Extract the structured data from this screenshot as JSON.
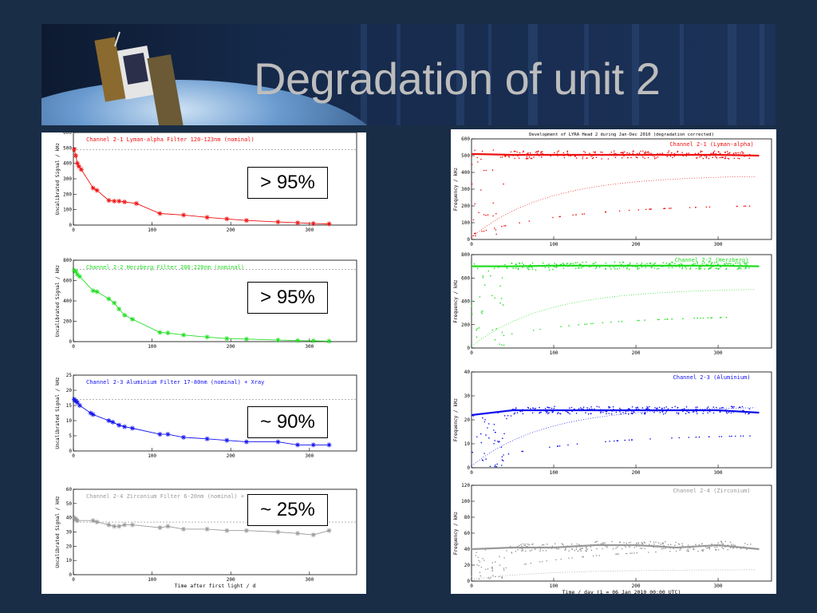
{
  "slide": {
    "title": "Degradation of unit 2",
    "background": "#1a2d47"
  },
  "annotations": [
    "> 95%",
    "> 95%",
    "~ 90%",
    "~ 25%"
  ],
  "colors": {
    "red": "#ee1111",
    "green": "#22dd22",
    "blue": "#1111ee",
    "grey": "#999999"
  },
  "chart_data": [
    {
      "panel": "left",
      "type": "scatter",
      "color": "#ee1111",
      "legend": "Channel 2-1       Lyman-alpha Filter      120-123nm (nominal)",
      "ylabel": "Uncalibrated Signal / kHz",
      "xlabel": "",
      "xlim": [
        0,
        360
      ],
      "ylim": [
        0,
        600
      ],
      "xticks": [
        "0",
        "100",
        "200",
        "300"
      ],
      "yticks": [
        "0",
        "100",
        "200",
        "300",
        "400",
        "500",
        "600"
      ],
      "reference": 490,
      "x": [
        1,
        3,
        5,
        7,
        10,
        25,
        30,
        45,
        52,
        58,
        65,
        80,
        110,
        140,
        170,
        195,
        220,
        260,
        285,
        305,
        325
      ],
      "y": [
        490,
        450,
        400,
        380,
        360,
        240,
        225,
        160,
        155,
        155,
        150,
        140,
        75,
        65,
        50,
        40,
        30,
        20,
        15,
        10,
        8
      ]
    },
    {
      "panel": "left",
      "type": "scatter",
      "color": "#22dd22",
      "legend": "Channel 2-2       Herzberg Filter         200-220nm (nominal)",
      "ylabel": "Uncalibrated Signal / kHz",
      "xlabel": "",
      "xlim": [
        0,
        360
      ],
      "ylim": [
        0,
        800
      ],
      "xticks": [
        "0",
        "100",
        "200",
        "300"
      ],
      "yticks": [
        "0",
        "200",
        "400",
        "600",
        "800"
      ],
      "reference": 710,
      "x": [
        1,
        3,
        5,
        8,
        25,
        30,
        45,
        52,
        58,
        65,
        75,
        110,
        120,
        140,
        170,
        195,
        220,
        260,
        285,
        305,
        325
      ],
      "y": [
        700,
        690,
        660,
        640,
        500,
        490,
        420,
        380,
        320,
        260,
        220,
        90,
        85,
        65,
        45,
        30,
        25,
        15,
        10,
        8,
        5
      ]
    },
    {
      "panel": "left",
      "type": "scatter",
      "color": "#1111ee",
      "legend": "Channel 2-3       Aluminium Filter        17-80nm (nominal) + Xray",
      "ylabel": "Uncalibrated Signal / kHz",
      "xlabel": "",
      "xlim": [
        0,
        360
      ],
      "ylim": [
        0,
        25
      ],
      "xticks": [
        "0",
        "100",
        "200",
        "300"
      ],
      "yticks": [
        "0",
        "5",
        "10",
        "15",
        "20",
        "25"
      ],
      "reference": 17,
      "x": [
        1,
        3,
        5,
        8,
        22,
        25,
        45,
        50,
        58,
        65,
        75,
        110,
        120,
        140,
        170,
        195,
        220,
        260,
        285,
        305,
        325
      ],
      "y": [
        17,
        16.5,
        16,
        15,
        12.5,
        12,
        10,
        9.5,
        8.5,
        8,
        7.5,
        5.5,
        5.5,
        4.5,
        4,
        3.5,
        3,
        3,
        2,
        2,
        2
      ]
    },
    {
      "panel": "left",
      "type": "scatter",
      "color": "#999999",
      "legend": "Channel 2-4       Zirconium Filter        6-20nm (nominal) + Xray",
      "ylabel": "Uncalibrated Signal / kHz",
      "xlabel": "Time after first light / d",
      "xlim": [
        0,
        360
      ],
      "ylim": [
        0,
        60
      ],
      "xticks": [
        "0",
        "100",
        "200",
        "300"
      ],
      "yticks": [
        "0",
        "10",
        "20",
        "30",
        "40",
        "50",
        "60"
      ],
      "reference": 37,
      "x": [
        1,
        3,
        5,
        25,
        30,
        45,
        52,
        58,
        65,
        75,
        110,
        120,
        140,
        170,
        195,
        220,
        260,
        285,
        305,
        325
      ],
      "y": [
        40,
        39,
        38,
        38,
        37,
        35,
        34,
        34,
        35,
        35,
        33,
        34,
        32,
        32,
        31,
        31,
        30,
        29,
        28,
        31
      ]
    },
    {
      "panel": "right",
      "type": "scatter",
      "color": "#ee1111",
      "title": "Development of LYRA Head 2 during Jan-Dec 2010 (degradation corrected)",
      "legend": "Channel 2-1 (Lyman-alpha)",
      "ylabel": "Frequency / kHz",
      "xlabel": "",
      "xlim": [
        0,
        365
      ],
      "ylim": [
        0,
        600
      ],
      "xticks": [
        "0",
        "100",
        "200",
        "300"
      ],
      "yticks": [
        "0",
        "100",
        "200",
        "300",
        "400",
        "500",
        "600"
      ],
      "trend_x": [
        0,
        50,
        100,
        150,
        200,
        250,
        300,
        350
      ],
      "trend_y": [
        510,
        505,
        505,
        505,
        505,
        505,
        505,
        500
      ]
    },
    {
      "panel": "right",
      "type": "scatter",
      "color": "#22dd22",
      "legend": "Channel 2-2 (Herzberg)",
      "ylabel": "Frequency / kHz",
      "xlabel": "",
      "xlim": [
        0,
        365
      ],
      "ylim": [
        0,
        800
      ],
      "xticks": [
        "0",
        "100",
        "200",
        "300"
      ],
      "yticks": [
        "0",
        "200",
        "400",
        "600",
        "800"
      ],
      "trend_x": [
        0,
        50,
        100,
        150,
        200,
        250,
        300,
        350
      ],
      "trend_y": [
        700,
        700,
        705,
        705,
        705,
        705,
        705,
        700
      ]
    },
    {
      "panel": "right",
      "type": "scatter",
      "color": "#1111ee",
      "legend": "Channel 2-3 (Aluminium)",
      "ylabel": "Frequency / kHz",
      "xlabel": "",
      "xlim": [
        0,
        365
      ],
      "ylim": [
        0,
        40
      ],
      "xticks": [
        "0",
        "100",
        "200",
        "300"
      ],
      "yticks": [
        "0",
        "10",
        "20",
        "30",
        "40"
      ],
      "trend_x": [
        0,
        50,
        100,
        150,
        200,
        250,
        300,
        350
      ],
      "trend_y": [
        22,
        24,
        24,
        24,
        24,
        24,
        24,
        23
      ]
    },
    {
      "panel": "right",
      "type": "scatter",
      "color": "#999999",
      "legend": "Channel 2-4 (Zirconium)",
      "ylabel": "Frequency / kHz",
      "xlabel": "Time / day (1 = 06 Jan 2010 00:00 UTC)",
      "xlim": [
        0,
        365
      ],
      "ylim": [
        0,
        120
      ],
      "xticks": [
        "0",
        "100",
        "200",
        "300"
      ],
      "yticks": [
        "0",
        "20",
        "40",
        "60",
        "80",
        "100",
        "120"
      ],
      "trend_x": [
        0,
        50,
        100,
        150,
        200,
        250,
        300,
        350
      ],
      "trend_y": [
        40,
        42,
        42,
        45,
        45,
        42,
        45,
        40
      ]
    }
  ]
}
